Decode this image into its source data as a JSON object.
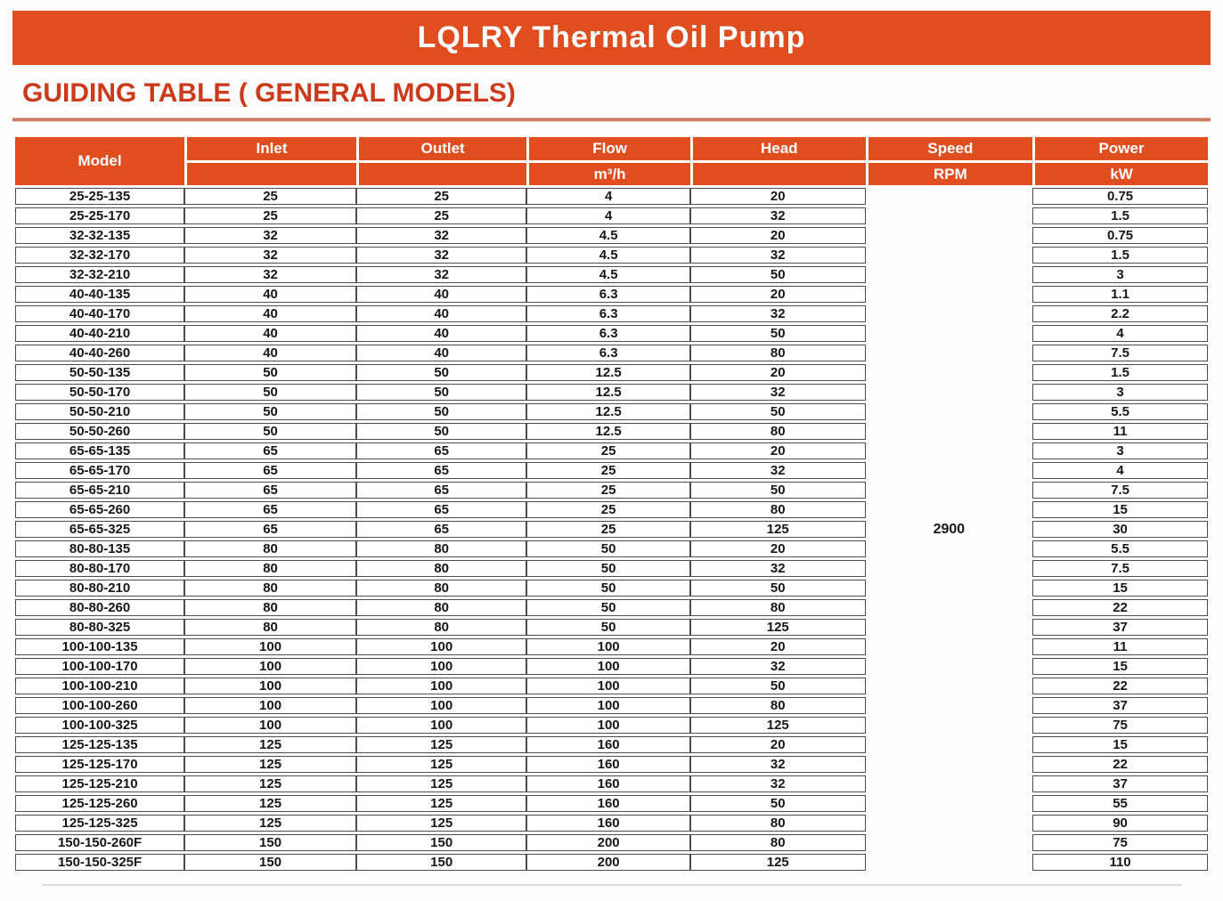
{
  "title": "LQLRY Thermal Oil Pump",
  "section_heading": "GUIDING TABLE ( GENERAL MODELS)",
  "colors": {
    "banner_bg": "#e04e20",
    "heading_text": "#cc3a1b",
    "header_bg": "#e04e20",
    "header_text": "#ffffff",
    "row_border": "#4d4d4d",
    "cell_text": "#171717"
  },
  "table": {
    "columns": [
      {
        "label": "Model",
        "sub": ""
      },
      {
        "label": "Inlet",
        "sub": ""
      },
      {
        "label": "Outlet",
        "sub": ""
      },
      {
        "label": "Flow",
        "sub": "m³/h"
      },
      {
        "label": "Head",
        "sub": ""
      },
      {
        "label": "Speed",
        "sub": "RPM"
      },
      {
        "label": "Power",
        "sub": "kW"
      }
    ],
    "speed_value": "2900",
    "rows": [
      [
        "25-25-135",
        "25",
        "25",
        "4",
        "20",
        "0.75"
      ],
      [
        "25-25-170",
        "25",
        "25",
        "4",
        "32",
        "1.5"
      ],
      [
        "32-32-135",
        "32",
        "32",
        "4.5",
        "20",
        "0.75"
      ],
      [
        "32-32-170",
        "32",
        "32",
        "4.5",
        "32",
        "1.5"
      ],
      [
        "32-32-210",
        "32",
        "32",
        "4.5",
        "50",
        "3"
      ],
      [
        "40-40-135",
        "40",
        "40",
        "6.3",
        "20",
        "1.1"
      ],
      [
        "40-40-170",
        "40",
        "40",
        "6.3",
        "32",
        "2.2"
      ],
      [
        "40-40-210",
        "40",
        "40",
        "6.3",
        "50",
        "4"
      ],
      [
        "40-40-260",
        "40",
        "40",
        "6.3",
        "80",
        "7.5"
      ],
      [
        "50-50-135",
        "50",
        "50",
        "12.5",
        "20",
        "1.5"
      ],
      [
        "50-50-170",
        "50",
        "50",
        "12.5",
        "32",
        "3"
      ],
      [
        "50-50-210",
        "50",
        "50",
        "12.5",
        "50",
        "5.5"
      ],
      [
        "50-50-260",
        "50",
        "50",
        "12.5",
        "80",
        "11"
      ],
      [
        "65-65-135",
        "65",
        "65",
        "25",
        "20",
        "3"
      ],
      [
        "65-65-170",
        "65",
        "65",
        "25",
        "32",
        "4"
      ],
      [
        "65-65-210",
        "65",
        "65",
        "25",
        "50",
        "7.5"
      ],
      [
        "65-65-260",
        "65",
        "65",
        "25",
        "80",
        "15"
      ],
      [
        "65-65-325",
        "65",
        "65",
        "25",
        "125",
        "30"
      ],
      [
        "80-80-135",
        "80",
        "80",
        "50",
        "20",
        "5.5"
      ],
      [
        "80-80-170",
        "80",
        "80",
        "50",
        "32",
        "7.5"
      ],
      [
        "80-80-210",
        "80",
        "80",
        "50",
        "50",
        "15"
      ],
      [
        "80-80-260",
        "80",
        "80",
        "50",
        "80",
        "22"
      ],
      [
        "80-80-325",
        "80",
        "80",
        "50",
        "125",
        "37"
      ],
      [
        "100-100-135",
        "100",
        "100",
        "100",
        "20",
        "11"
      ],
      [
        "100-100-170",
        "100",
        "100",
        "100",
        "32",
        "15"
      ],
      [
        "100-100-210",
        "100",
        "100",
        "100",
        "50",
        "22"
      ],
      [
        "100-100-260",
        "100",
        "100",
        "100",
        "80",
        "37"
      ],
      [
        "100-100-325",
        "100",
        "100",
        "100",
        "125",
        "75"
      ],
      [
        "125-125-135",
        "125",
        "125",
        "160",
        "20",
        "15"
      ],
      [
        "125-125-170",
        "125",
        "125",
        "160",
        "32",
        "22"
      ],
      [
        "125-125-210",
        "125",
        "125",
        "160",
        "32",
        "37"
      ],
      [
        "125-125-260",
        "125",
        "125",
        "160",
        "50",
        "55"
      ],
      [
        "125-125-325",
        "125",
        "125",
        "160",
        "80",
        "90"
      ],
      [
        "150-150-260F",
        "150",
        "150",
        "200",
        "80",
        "75"
      ],
      [
        "150-150-325F",
        "150",
        "150",
        "200",
        "125",
        "110"
      ]
    ]
  }
}
